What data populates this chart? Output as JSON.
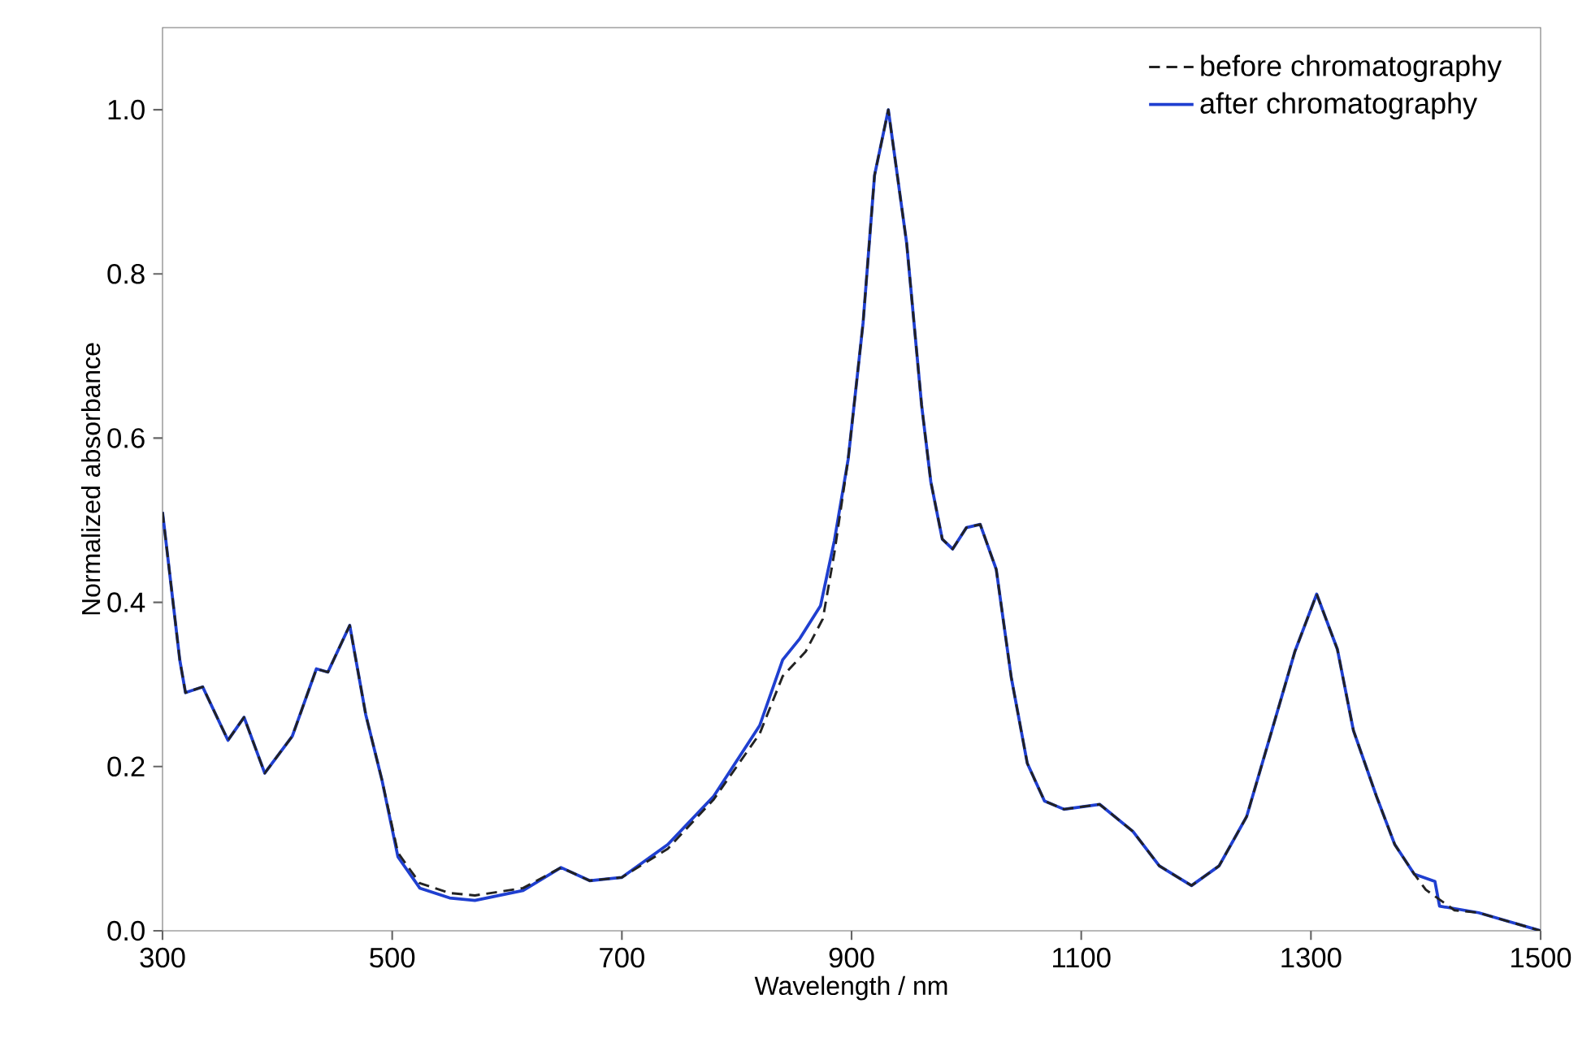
{
  "chart_data": {
    "type": "line",
    "xlabel": "Wavelength / nm",
    "ylabel": "Normalized absorbance",
    "xlim": [
      300,
      1500
    ],
    "ylim": [
      0,
      1.1
    ],
    "xticks": [
      300,
      500,
      700,
      900,
      1100,
      1300,
      1500
    ],
    "yticks": [
      {
        "value": 0,
        "label": "0.0"
      },
      {
        "value": 0.2,
        "label": "0.2"
      },
      {
        "value": 0.4,
        "label": "0.4"
      },
      {
        "value": 0.6,
        "label": "0.6"
      },
      {
        "value": 0.8,
        "label": "0.8"
      },
      {
        "value": 1.0,
        "label": "1.0"
      }
    ],
    "legend": "top right",
    "grid": false,
    "series": [
      {
        "name": "before chromatography",
        "color": "#222222",
        "line_style": "dashed",
        "x": [
          300,
          315,
          320,
          335,
          357,
          371,
          389,
          413,
          434,
          444,
          463,
          477,
          491,
          505,
          524,
          550,
          572,
          614,
          647,
          672,
          700,
          740,
          780,
          820,
          840,
          860,
          875,
          885,
          897,
          910,
          920,
          932,
          948,
          961,
          969,
          979,
          988,
          1000,
          1012,
          1026,
          1039,
          1053,
          1068,
          1085,
          1116,
          1145,
          1168,
          1196,
          1220,
          1244,
          1266,
          1286,
          1305,
          1323,
          1337,
          1357,
          1373,
          1390,
          1400,
          1425,
          1446,
          1500
        ],
        "values": [
          0.51,
          0.33,
          0.29,
          0.297,
          0.232,
          0.26,
          0.192,
          0.237,
          0.319,
          0.315,
          0.372,
          0.263,
          0.184,
          0.095,
          0.058,
          0.046,
          0.043,
          0.052,
          0.077,
          0.061,
          0.065,
          0.1,
          0.16,
          0.24,
          0.31,
          0.34,
          0.38,
          0.46,
          0.574,
          0.74,
          0.92,
          1.0,
          0.837,
          0.64,
          0.547,
          0.477,
          0.465,
          0.491,
          0.495,
          0.44,
          0.309,
          0.204,
          0.158,
          0.148,
          0.154,
          0.121,
          0.079,
          0.055,
          0.079,
          0.139,
          0.244,
          0.34,
          0.41,
          0.343,
          0.244,
          0.164,
          0.105,
          0.069,
          0.05,
          0.025,
          0.022,
          0.0
        ]
      },
      {
        "name": "after chromatography",
        "color": "#1f3fd0",
        "line_style": "solid",
        "x": [
          300,
          315,
          320,
          335,
          357,
          371,
          389,
          413,
          434,
          444,
          463,
          477,
          491,
          505,
          524,
          550,
          572,
          614,
          647,
          672,
          700,
          740,
          780,
          820,
          840,
          855,
          873,
          885,
          897,
          910,
          920,
          932,
          948,
          961,
          969,
          979,
          988,
          1000,
          1012,
          1026,
          1039,
          1053,
          1068,
          1085,
          1116,
          1145,
          1168,
          1196,
          1220,
          1244,
          1266,
          1286,
          1305,
          1323,
          1337,
          1357,
          1373,
          1390,
          1408,
          1412,
          1446,
          1500
        ],
        "values": [
          0.51,
          0.33,
          0.29,
          0.297,
          0.232,
          0.26,
          0.192,
          0.237,
          0.319,
          0.315,
          0.372,
          0.263,
          0.184,
          0.09,
          0.052,
          0.04,
          0.037,
          0.049,
          0.077,
          0.061,
          0.065,
          0.105,
          0.164,
          0.25,
          0.33,
          0.356,
          0.396,
          0.475,
          0.574,
          0.74,
          0.92,
          1.0,
          0.837,
          0.64,
          0.547,
          0.477,
          0.465,
          0.491,
          0.495,
          0.44,
          0.309,
          0.204,
          0.158,
          0.148,
          0.154,
          0.121,
          0.079,
          0.055,
          0.079,
          0.139,
          0.244,
          0.34,
          0.41,
          0.343,
          0.244,
          0.164,
          0.105,
          0.069,
          0.06,
          0.03,
          0.022,
          0.0
        ]
      }
    ]
  }
}
